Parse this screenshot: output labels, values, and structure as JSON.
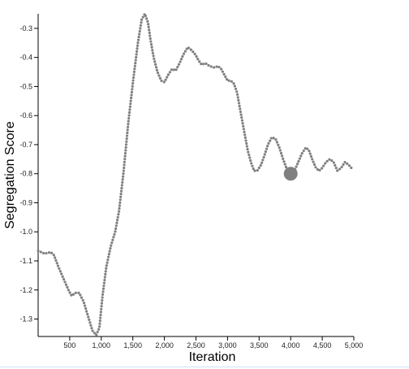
{
  "chart_data": {
    "type": "scatter",
    "title": "",
    "xlabel": "Iteration",
    "ylabel": "Segregation Score",
    "xlim": [
      0,
      5000
    ],
    "ylim": [
      -1.36,
      -0.25
    ],
    "xticks": [
      500,
      1000,
      1500,
      2000,
      2500,
      3000,
      3500,
      4000,
      4500,
      5000
    ],
    "xtick_labels": [
      "500",
      "1,000",
      "1,500",
      "2,000",
      "2,500",
      "3,000",
      "3,500",
      "4,000",
      "4,500",
      "5,000"
    ],
    "yticks": [
      -0.3,
      -0.4,
      -0.5,
      -0.6,
      -0.7,
      -0.8,
      -0.9,
      -1.0,
      -1.1,
      -1.2,
      -1.3
    ],
    "ytick_labels": [
      "-0.3",
      "-0.4",
      "-0.5",
      "-0.6",
      "-0.7",
      "-0.8",
      "-0.9",
      "-1.0",
      "-1.1",
      "-1.2",
      "-1.3"
    ],
    "point_color": "#808080",
    "trace_knots": [
      [
        0,
        -1.065
      ],
      [
        100,
        -1.075
      ],
      [
        200,
        -1.07
      ],
      [
        250,
        -1.08
      ],
      [
        320,
        -1.12
      ],
      [
        400,
        -1.16
      ],
      [
        480,
        -1.2
      ],
      [
        530,
        -1.22
      ],
      [
        590,
        -1.21
      ],
      [
        650,
        -1.21
      ],
      [
        720,
        -1.24
      ],
      [
        790,
        -1.29
      ],
      [
        860,
        -1.34
      ],
      [
        920,
        -1.355
      ],
      [
        970,
        -1.33
      ],
      [
        1020,
        -1.22
      ],
      [
        1080,
        -1.12
      ],
      [
        1150,
        -1.05
      ],
      [
        1220,
        -1.0
      ],
      [
        1280,
        -0.93
      ],
      [
        1350,
        -0.8
      ],
      [
        1430,
        -0.62
      ],
      [
        1510,
        -0.47
      ],
      [
        1580,
        -0.35
      ],
      [
        1640,
        -0.27
      ],
      [
        1690,
        -0.25
      ],
      [
        1740,
        -0.28
      ],
      [
        1780,
        -0.34
      ],
      [
        1830,
        -0.4
      ],
      [
        1890,
        -0.45
      ],
      [
        1950,
        -0.48
      ],
      [
        2000,
        -0.485
      ],
      [
        2060,
        -0.46
      ],
      [
        2120,
        -0.44
      ],
      [
        2180,
        -0.445
      ],
      [
        2240,
        -0.42
      ],
      [
        2300,
        -0.39
      ],
      [
        2370,
        -0.365
      ],
      [
        2430,
        -0.375
      ],
      [
        2490,
        -0.39
      ],
      [
        2540,
        -0.41
      ],
      [
        2590,
        -0.425
      ],
      [
        2650,
        -0.42
      ],
      [
        2720,
        -0.43
      ],
      [
        2790,
        -0.435
      ],
      [
        2850,
        -0.43
      ],
      [
        2900,
        -0.44
      ],
      [
        2950,
        -0.46
      ],
      [
        3000,
        -0.48
      ],
      [
        3050,
        -0.48
      ],
      [
        3100,
        -0.49
      ],
      [
        3150,
        -0.52
      ],
      [
        3200,
        -0.58
      ],
      [
        3260,
        -0.65
      ],
      [
        3320,
        -0.72
      ],
      [
        3370,
        -0.76
      ],
      [
        3420,
        -0.79
      ],
      [
        3470,
        -0.79
      ],
      [
        3530,
        -0.77
      ],
      [
        3580,
        -0.74
      ],
      [
        3640,
        -0.7
      ],
      [
        3700,
        -0.675
      ],
      [
        3760,
        -0.68
      ],
      [
        3820,
        -0.71
      ],
      [
        3880,
        -0.75
      ],
      [
        3940,
        -0.785
      ],
      [
        4000,
        -0.8
      ],
      [
        4060,
        -0.79
      ],
      [
        4120,
        -0.76
      ],
      [
        4180,
        -0.73
      ],
      [
        4240,
        -0.71
      ],
      [
        4290,
        -0.72
      ],
      [
        4340,
        -0.75
      ],
      [
        4400,
        -0.78
      ],
      [
        4450,
        -0.79
      ],
      [
        4500,
        -0.78
      ],
      [
        4560,
        -0.76
      ],
      [
        4620,
        -0.75
      ],
      [
        4680,
        -0.76
      ],
      [
        4740,
        -0.79
      ],
      [
        4800,
        -0.78
      ],
      [
        4860,
        -0.76
      ],
      [
        4920,
        -0.77
      ],
      [
        4980,
        -0.785
      ]
    ],
    "highlight_point": {
      "x": 4000,
      "y": -0.8
    }
  }
}
